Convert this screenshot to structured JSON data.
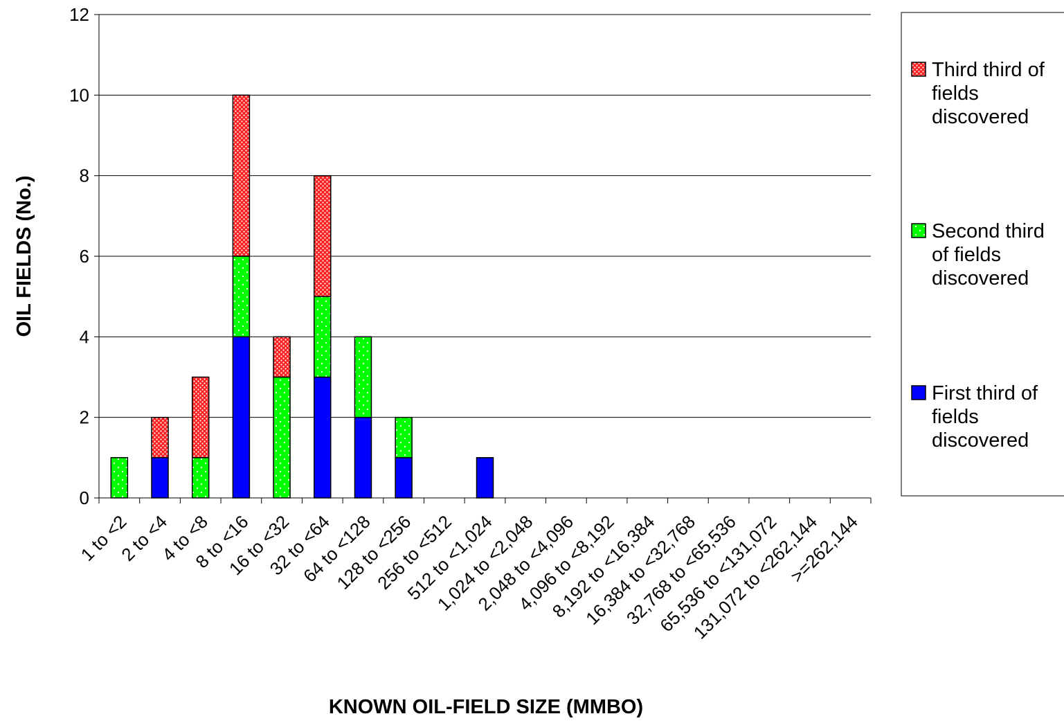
{
  "chart_data": {
    "type": "bar",
    "stacked": true,
    "categories": [
      "1 to <2",
      "2 to <4",
      "4 to <8",
      "8 to <16",
      "16 to <32",
      "32 to <64",
      "64 to <128",
      "128 to <256",
      "256 to <512",
      "512 to <1,024",
      "1,024 to <2,048",
      "2,048 to <4,096",
      "4,096 to <8,192",
      "8,192 to <16,384",
      "16,384 to <32,768",
      "32,768 to <65,536",
      "65,536 to <131,072",
      "131,072 to <262,144",
      ">=262,144"
    ],
    "series": [
      {
        "name": "First third of fields discovered",
        "color": "#0000ff",
        "pattern": "solid",
        "values": [
          0,
          1,
          0,
          4,
          0,
          3,
          2,
          1,
          0,
          1,
          0,
          0,
          0,
          0,
          0,
          0,
          0,
          0,
          0
        ]
      },
      {
        "name": "Second third of fields discovered",
        "color": "#00ff00",
        "pattern": "dotted",
        "values": [
          1,
          0,
          1,
          2,
          3,
          2,
          2,
          1,
          0,
          0,
          0,
          0,
          0,
          0,
          0,
          0,
          0,
          0,
          0
        ]
      },
      {
        "name": "Third third of fields discovered",
        "color": "#ff0000",
        "pattern": "dense-dotted",
        "values": [
          0,
          1,
          2,
          4,
          1,
          3,
          0,
          0,
          0,
          0,
          0,
          0,
          0,
          0,
          0,
          0,
          0,
          0,
          0
        ]
      }
    ],
    "title": "",
    "xlabel": "KNOWN OIL-FIELD SIZE (MMBO)",
    "ylabel": "OIL FIELDS (No.)",
    "ylim": [
      0,
      12
    ],
    "yticks": [
      0,
      2,
      4,
      6,
      8,
      10,
      12
    ],
    "grid": true,
    "legend_position": "right"
  }
}
